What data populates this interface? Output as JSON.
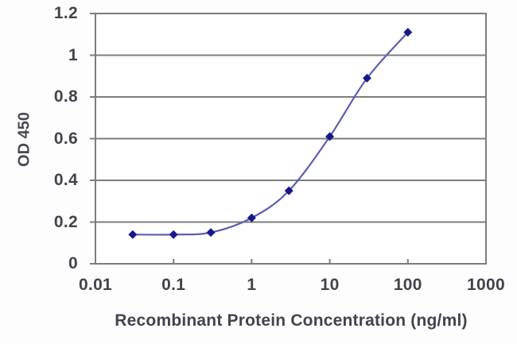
{
  "chart_data": {
    "type": "line",
    "title": "",
    "xlabel": "Recombinant Protein Concentration (ng/ml)",
    "ylabel": "OD 450",
    "x_scale": "log10",
    "xlim": [
      0.01,
      1000
    ],
    "ylim": [
      0,
      1.2
    ],
    "x_tick_values": [
      0.01,
      0.1,
      1,
      10,
      100,
      1000
    ],
    "x_tick_labels": [
      "0.01",
      "0.1",
      "1",
      "10",
      "100",
      "1000"
    ],
    "y_tick_values": [
      0,
      0.2,
      0.4,
      0.6,
      0.8,
      1,
      1.2
    ],
    "y_tick_labels": [
      "0",
      "0.2",
      "0.4",
      "0.6",
      "0.8",
      "1",
      "1.2"
    ],
    "grid": "horizontal",
    "legend": "none",
    "series": [
      {
        "name": "OD 450 vs concentration",
        "x": [
          0.03,
          0.1,
          0.3,
          1,
          3,
          10,
          30,
          100
        ],
        "y": [
          0.14,
          0.14,
          0.15,
          0.22,
          0.35,
          0.61,
          0.89,
          1.11
        ],
        "marker": "diamond",
        "smooth": true
      }
    ]
  },
  "colors": {
    "background": "#fdfdfd",
    "plot_background": "#ffffff",
    "grid": "#7d7d7d",
    "frame": "#7d7d7d",
    "axis_text": "#43434d",
    "line": "#5d5db2",
    "marker": "#17178c"
  }
}
